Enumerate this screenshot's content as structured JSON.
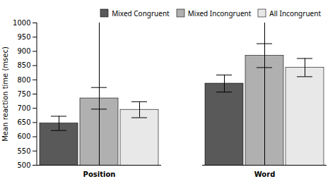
{
  "chart_data": {
    "type": "bar",
    "categories": [
      "Position",
      "Word"
    ],
    "series": [
      {
        "name": "Mixed Congruent",
        "values": [
          647,
          787
        ],
        "errors": [
          25,
          30
        ],
        "color": "#595959"
      },
      {
        "name": "Mixed Incongruent",
        "values": [
          735,
          885
        ],
        "errors": [
          38,
          42
        ],
        "color": "#b0b0b0"
      },
      {
        "name": "All Incongruent",
        "values": [
          695,
          843
        ],
        "errors": [
          28,
          32
        ],
        "color": "#e8e8e8"
      }
    ],
    "ylabel": "Mean reaction time (msec)",
    "ylim": [
      500,
      1000
    ],
    "yticks": [
      500,
      550,
      600,
      650,
      700,
      750,
      800,
      850,
      900,
      950,
      1000
    ],
    "grid": false,
    "legend": "upper right"
  }
}
